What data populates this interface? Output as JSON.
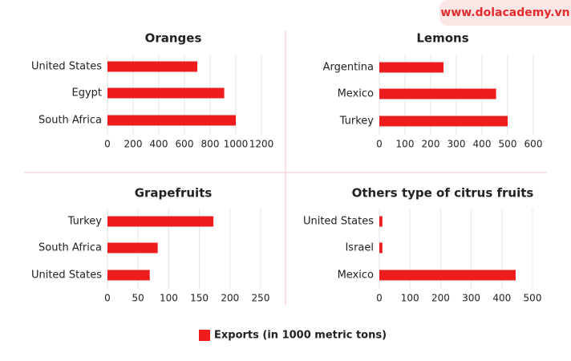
{
  "watermark": "www.dolacademy.vn",
  "legend": {
    "label": "Exports (in 1000 metric tons)",
    "color": "#ee1c1c"
  },
  "chart_data": [
    {
      "type": "bar",
      "orientation": "horizontal",
      "title": "Oranges",
      "categories": [
        "United States",
        "Egypt",
        "South Africa"
      ],
      "values": [
        700,
        910,
        1000
      ],
      "color": "#ee1c1c",
      "xlim": [
        0,
        1200
      ],
      "xticks": [
        0,
        200,
        400,
        600,
        800,
        1000,
        1200
      ],
      "grid": true
    },
    {
      "type": "bar",
      "orientation": "horizontal",
      "title": "Lemons",
      "categories": [
        "Argentina",
        "Mexico",
        "Turkey"
      ],
      "values": [
        250,
        455,
        500
      ],
      "color": "#ee1c1c",
      "xlim": [
        0,
        600
      ],
      "xticks": [
        0,
        100,
        200,
        300,
        400,
        500,
        600
      ],
      "grid": true
    },
    {
      "type": "bar",
      "orientation": "horizontal",
      "title": "Grapefruits",
      "categories": [
        "Turkey",
        "South Africa",
        "United States"
      ],
      "values": [
        173,
        82,
        69
      ],
      "color": "#ee1c1c",
      "xlim": [
        0,
        250
      ],
      "xticks": [
        0,
        50,
        100,
        150,
        200,
        250
      ],
      "grid": true
    },
    {
      "type": "bar",
      "orientation": "horizontal",
      "title": "Others type of citrus fruits",
      "categories": [
        "United States",
        "Israel",
        "Mexico"
      ],
      "values": [
        10,
        10,
        445
      ],
      "color": "#ee1c1c",
      "xlim": [
        0,
        500
      ],
      "xticks": [
        0,
        100,
        200,
        300,
        400,
        500
      ],
      "grid": true
    }
  ]
}
